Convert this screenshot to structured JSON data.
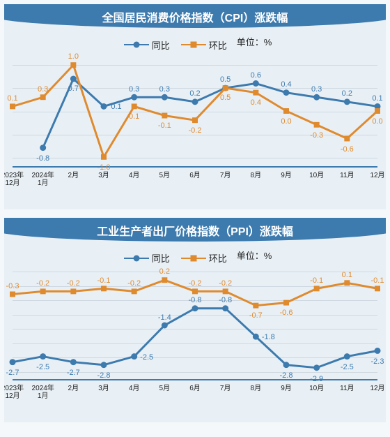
{
  "legend": {
    "series1": "同比",
    "series2": "环比",
    "unit": "单位：%"
  },
  "xcategories": [
    "2023年\n12月",
    "2024年\n1月",
    "2月",
    "3月",
    "4月",
    "5月",
    "6月",
    "7月",
    "8月",
    "9月",
    "10月",
    "11月",
    "12月"
  ],
  "charts": [
    {
      "title": "全国居民消费价格指数（CPI）涨跌幅",
      "ylim": [
        -1.2,
        1.2
      ],
      "grid_y": [
        -1.0,
        -0.5,
        0,
        0.5,
        1.0
      ],
      "background_color": "#e8f0f6",
      "title_bg": "#3d7aad",
      "series": [
        {
          "name": "同比",
          "color": "#3d7aad",
          "marker": "circle",
          "line_width": 3,
          "values": [
            null,
            -0.8,
            0.7,
            0.1,
            0.3,
            0.3,
            0.2,
            0.5,
            0.6,
            0.4,
            0.3,
            0.2,
            0.1
          ],
          "label_pos": [
            "",
            "below",
            "below",
            "right",
            "above",
            "above",
            "above",
            "above",
            "above",
            "above",
            "above",
            "above",
            "above"
          ]
        },
        {
          "name": "环比",
          "color": "#e08a2e",
          "marker": "square",
          "line_width": 3,
          "values": [
            0.1,
            0.3,
            1.0,
            -1.0,
            0.1,
            -0.1,
            -0.2,
            0.5,
            0.4,
            0.0,
            -0.3,
            -0.6,
            0.0
          ],
          "label_pos": [
            "above",
            "above",
            "above",
            "below",
            "below",
            "below",
            "below",
            "below",
            "below",
            "below",
            "below",
            "below",
            "below"
          ]
        }
      ]
    },
    {
      "title": "工业生产者出厂价格指数（PPI）涨跌幅",
      "ylim": [
        -3.3,
        0.6
      ],
      "grid_y": [
        -3.0,
        -2.5,
        -2.0,
        -1.5,
        -1.0,
        -0.5,
        0,
        0.5
      ],
      "background_color": "#e8f0f6",
      "title_bg": "#3d7aad",
      "series": [
        {
          "name": "同比",
          "color": "#3d7aad",
          "marker": "circle",
          "line_width": 3,
          "values": [
            -2.7,
            -2.5,
            -2.7,
            -2.8,
            -2.5,
            -1.4,
            -0.8,
            -0.8,
            -1.8,
            -2.8,
            -2.9,
            -2.5,
            -2.3
          ],
          "label_pos": [
            "below",
            "below",
            "below",
            "below",
            "right",
            "above",
            "above",
            "above",
            "right",
            "below",
            "below",
            "below",
            "below"
          ]
        },
        {
          "name": "环比",
          "color": "#e08a2e",
          "marker": "square",
          "line_width": 3,
          "values": [
            -0.3,
            -0.2,
            -0.2,
            -0.1,
            -0.2,
            0.2,
            -0.2,
            -0.2,
            -0.7,
            -0.6,
            -0.1,
            0.1,
            -0.1
          ],
          "label_pos": [
            "above",
            "above",
            "above",
            "above",
            "above",
            "above",
            "above",
            "above",
            "below",
            "below",
            "above",
            "above",
            "above"
          ]
        }
      ]
    }
  ]
}
